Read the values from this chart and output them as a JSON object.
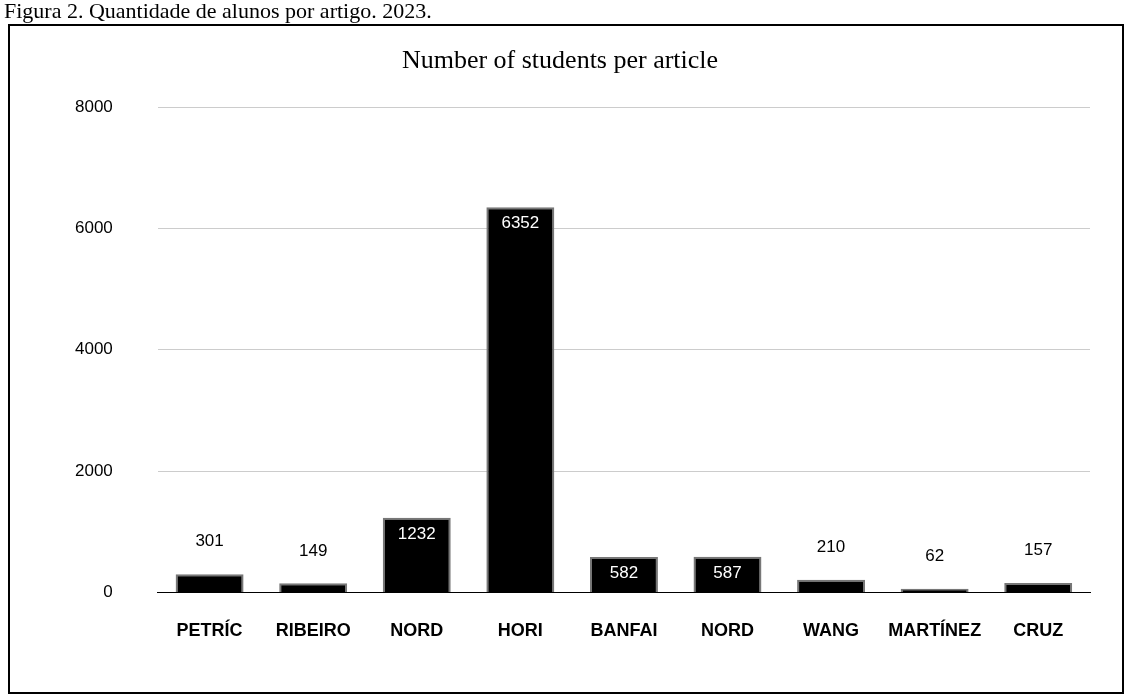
{
  "chart_data": {
    "type": "bar",
    "title": "Number of students per article",
    "annotations": [
      "Figura 2. Quantidade de alunos por artigo. 2023."
    ],
    "categories": [
      "PETRÍC",
      "RIBEIRO",
      "NORD",
      "HORI",
      "BANFAI",
      "NORD",
      "WANG",
      "MARTÍNEZ",
      "CRUZ"
    ],
    "values": [
      301,
      149,
      1232,
      6352,
      582,
      587,
      210,
      62,
      157
    ],
    "color": "#000000",
    "ylim": [
      0,
      8000
    ],
    "yticks": [
      0,
      2000,
      4000,
      6000,
      8000
    ],
    "grid": "y",
    "data_labels": true
  }
}
